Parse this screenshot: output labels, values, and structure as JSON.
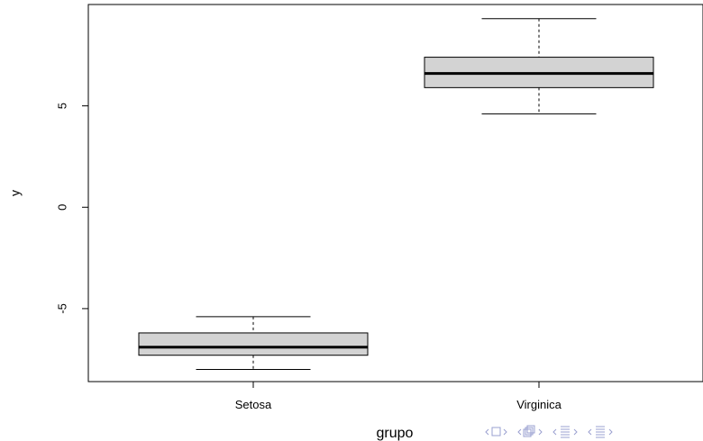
{
  "chart_data": {
    "type": "boxplot",
    "xlabel": "grupo",
    "ylabel": "y",
    "categories": [
      "Setosa",
      "Virginica"
    ],
    "boxes": [
      {
        "name": "Setosa",
        "whisker_low": -8.0,
        "q1": -7.3,
        "median": -6.9,
        "q3": -6.2,
        "whisker_high": -5.4
      },
      {
        "name": "Virginica",
        "whisker_low": 4.6,
        "q1": 5.9,
        "median": 6.6,
        "q3": 7.4,
        "whisker_high": 9.3
      }
    ],
    "yticks": [
      -5,
      0,
      5
    ],
    "ylim": [
      -8.6,
      10.0
    ],
    "box_color": "#d3d3d3",
    "grid": false
  },
  "nav": {
    "color": "#9aa0d0",
    "icons": [
      "frame-nav-icon",
      "subsection-nav-icon",
      "section-nav-icon",
      "search-nav-icon"
    ]
  }
}
